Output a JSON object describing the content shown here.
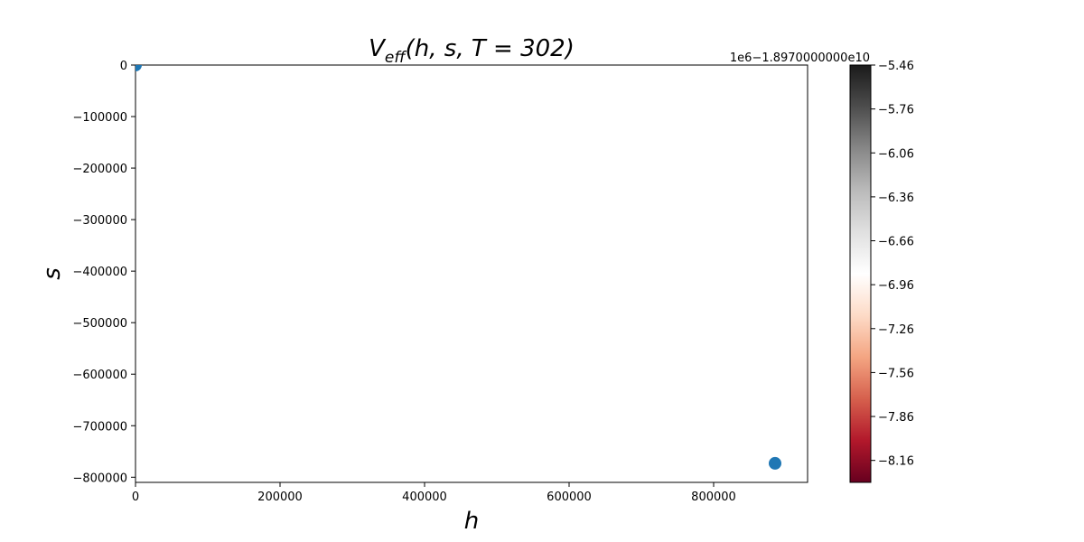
{
  "chart_data": {
    "type": "scatter",
    "title": {
      "main": "V",
      "subscript": "eff",
      "rest": "(h, s, T = 302)"
    },
    "xlabel": "h",
    "ylabel": "s",
    "xlim": [
      0,
      930000
    ],
    "ylim": [
      -810000,
      0
    ],
    "x_ticks": [
      0,
      200000,
      400000,
      600000,
      800000
    ],
    "x_tick_labels": [
      "0",
      "200000",
      "400000",
      "600000",
      "800000"
    ],
    "y_ticks": [
      0,
      -100000,
      -200000,
      -300000,
      -400000,
      -500000,
      -600000,
      -700000,
      -800000
    ],
    "y_tick_labels": [
      "0",
      "−100000",
      "−200000",
      "−300000",
      "−400000",
      "−500000",
      "−600000",
      "−700000",
      "−800000"
    ],
    "grid": false,
    "points": [
      {
        "x": 0,
        "y": 0
      },
      {
        "x": 885000,
        "y": -773000
      }
    ],
    "marker_color": "#1f77b4",
    "colorbar": {
      "cmap": "RdGy",
      "offset_label": "1e6−1.8970000000e10",
      "vmin": -8.31,
      "vmax": -5.46,
      "ticks": [
        -5.46,
        -5.76,
        -6.06,
        -6.36,
        -6.66,
        -6.96,
        -7.26,
        -7.56,
        -7.86,
        -8.16
      ],
      "tick_labels": [
        "−5.46",
        "−5.76",
        "−6.06",
        "−6.36",
        "−6.66",
        "−6.96",
        "−7.26",
        "−7.56",
        "−7.86",
        "−8.16"
      ],
      "colors": [
        "#67001f",
        "#b2182b",
        "#d6604d",
        "#f4a582",
        "#fddbc7",
        "#ffffff",
        "#e0e0e0",
        "#bababa",
        "#878787",
        "#4d4d4d",
        "#1a1a1a"
      ]
    }
  }
}
